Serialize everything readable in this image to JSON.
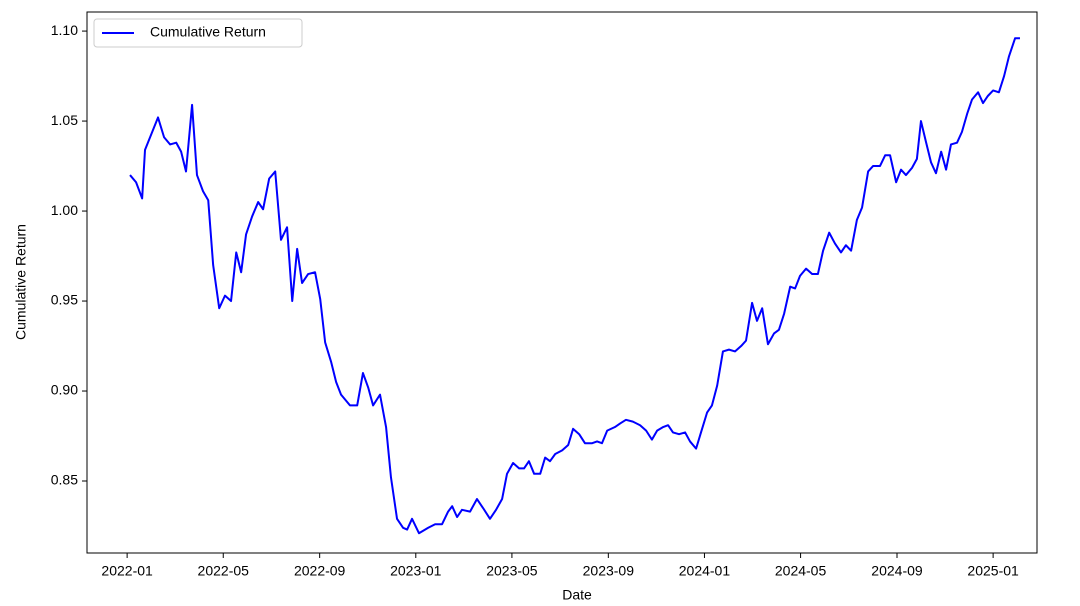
{
  "chart_data": {
    "type": "line",
    "xlabel": "Date",
    "ylabel": "Cumulative Return",
    "x": [
      2022.01,
      2022.031,
      2022.052,
      2022.062,
      2022.107,
      2022.128,
      2022.149,
      2022.17,
      2022.187,
      2022.204,
      2022.225,
      2022.242,
      2022.263,
      2022.281,
      2022.298,
      2022.319,
      2022.339,
      2022.36,
      2022.378,
      2022.395,
      2022.412,
      2022.433,
      2022.454,
      2022.471,
      2022.492,
      2022.513,
      2022.533,
      2022.554,
      2022.572,
      2022.589,
      2022.606,
      2022.627,
      2022.651,
      2022.669,
      2022.686,
      2022.707,
      2022.724,
      2022.741,
      2022.772,
      2022.797,
      2022.817,
      2022.835,
      2022.852,
      2022.876,
      2022.897,
      2022.914,
      2022.935,
      2022.956,
      2022.97,
      2022.987,
      2023.011,
      2023.043,
      2023.067,
      2023.091,
      2023.112,
      2023.126,
      2023.143,
      2023.16,
      2023.188,
      2023.212,
      2023.233,
      2023.257,
      2023.278,
      2023.299,
      2023.316,
      2023.337,
      2023.358,
      2023.375,
      2023.392,
      2023.41,
      2023.431,
      2023.448,
      2023.465,
      2023.483,
      2023.507,
      2023.528,
      2023.545,
      2023.566,
      2023.586,
      2023.611,
      2023.628,
      2023.645,
      2023.663,
      2023.69,
      2023.708,
      2023.728,
      2023.752,
      2023.777,
      2023.798,
      2023.818,
      2023.836,
      2023.857,
      2023.874,
      2023.891,
      2023.912,
      2023.933,
      2023.95,
      2023.971,
      2023.988,
      2024.009,
      2024.026,
      2024.044,
      2024.064,
      2024.085,
      2024.106,
      2024.127,
      2024.144,
      2024.165,
      2024.182,
      2024.2,
      2024.22,
      2024.241,
      2024.258,
      2024.276,
      2024.297,
      2024.314,
      2024.331,
      2024.352,
      2024.373,
      2024.393,
      2024.411,
      2024.432,
      2024.452,
      2024.473,
      2024.49,
      2024.508,
      2024.528,
      2024.546,
      2024.567,
      2024.584,
      2024.608,
      2024.626,
      2024.643,
      2024.664,
      2024.681,
      2024.698,
      2024.719,
      2024.736,
      2024.75,
      2024.768,
      2024.785,
      2024.802,
      2024.82,
      2024.837,
      2024.854,
      2024.875,
      2024.892,
      2024.91,
      2024.927,
      2024.948,
      2024.965,
      2024.982,
      2025.0,
      2025.02,
      2025.038,
      2025.055,
      2025.076,
      2025.093
    ],
    "series": [
      {
        "name": "Cumulative Return",
        "color": "#0000ff",
        "values": [
          1.02,
          1.016,
          1.007,
          1.034,
          1.052,
          1.041,
          1.037,
          1.038,
          1.033,
          1.022,
          1.059,
          1.02,
          1.011,
          1.006,
          0.97,
          0.946,
          0.953,
          0.95,
          0.977,
          0.966,
          0.987,
          0.997,
          1.005,
          1.001,
          1.018,
          1.022,
          0.984,
          0.991,
          0.95,
          0.979,
          0.96,
          0.965,
          0.966,
          0.951,
          0.927,
          0.916,
          0.905,
          0.898,
          0.892,
          0.892,
          0.91,
          0.902,
          0.892,
          0.898,
          0.88,
          0.852,
          0.829,
          0.824,
          0.823,
          0.829,
          0.821,
          0.824,
          0.826,
          0.826,
          0.833,
          0.836,
          0.83,
          0.834,
          0.833,
          0.84,
          0.835,
          0.829,
          0.834,
          0.84,
          0.854,
          0.86,
          0.857,
          0.857,
          0.861,
          0.854,
          0.854,
          0.863,
          0.861,
          0.865,
          0.867,
          0.87,
          0.879,
          0.876,
          0.871,
          0.871,
          0.872,
          0.871,
          0.878,
          0.88,
          0.882,
          0.884,
          0.883,
          0.881,
          0.878,
          0.873,
          0.878,
          0.88,
          0.881,
          0.877,
          0.876,
          0.877,
          0.872,
          0.868,
          0.877,
          0.888,
          0.892,
          0.903,
          0.922,
          0.923,
          0.922,
          0.925,
          0.928,
          0.949,
          0.939,
          0.946,
          0.926,
          0.932,
          0.934,
          0.943,
          0.958,
          0.957,
          0.964,
          0.968,
          0.965,
          0.965,
          0.978,
          0.988,
          0.982,
          0.977,
          0.981,
          0.978,
          0.995,
          1.002,
          1.022,
          1.025,
          1.025,
          1.031,
          1.031,
          1.016,
          1.023,
          1.02,
          1.024,
          1.029,
          1.05,
          1.038,
          1.027,
          1.021,
          1.033,
          1.023,
          1.037,
          1.038,
          1.044,
          1.054,
          1.062,
          1.066,
          1.06,
          1.064,
          1.067,
          1.066,
          1.075,
          1.086,
          1.096,
          1.096
        ]
      }
    ],
    "xlim": [
      2021.861,
      2025.152
    ],
    "xticks": [
      {
        "value": 2022.0,
        "label": "2022-01"
      },
      {
        "value": 2022.333,
        "label": "2022-05"
      },
      {
        "value": 2022.667,
        "label": "2022-09"
      },
      {
        "value": 2023.0,
        "label": "2023-01"
      },
      {
        "value": 2023.333,
        "label": "2023-05"
      },
      {
        "value": 2023.667,
        "label": "2023-09"
      },
      {
        "value": 2024.0,
        "label": "2024-01"
      },
      {
        "value": 2024.333,
        "label": "2024-05"
      },
      {
        "value": 2024.667,
        "label": "2024-09"
      },
      {
        "value": 2025.0,
        "label": "2025-01"
      }
    ],
    "ylim": [
      0.81,
      1.1106
    ],
    "yticks": [
      {
        "value": 0.85,
        "label": "0.85"
      },
      {
        "value": 0.9,
        "label": "0.90"
      },
      {
        "value": 0.95,
        "label": "0.95"
      },
      {
        "value": 1.0,
        "label": "1.00"
      },
      {
        "value": 1.05,
        "label": "1.05"
      },
      {
        "value": 1.1,
        "label": "1.10"
      }
    ],
    "legend": "upper left",
    "grid": false
  }
}
